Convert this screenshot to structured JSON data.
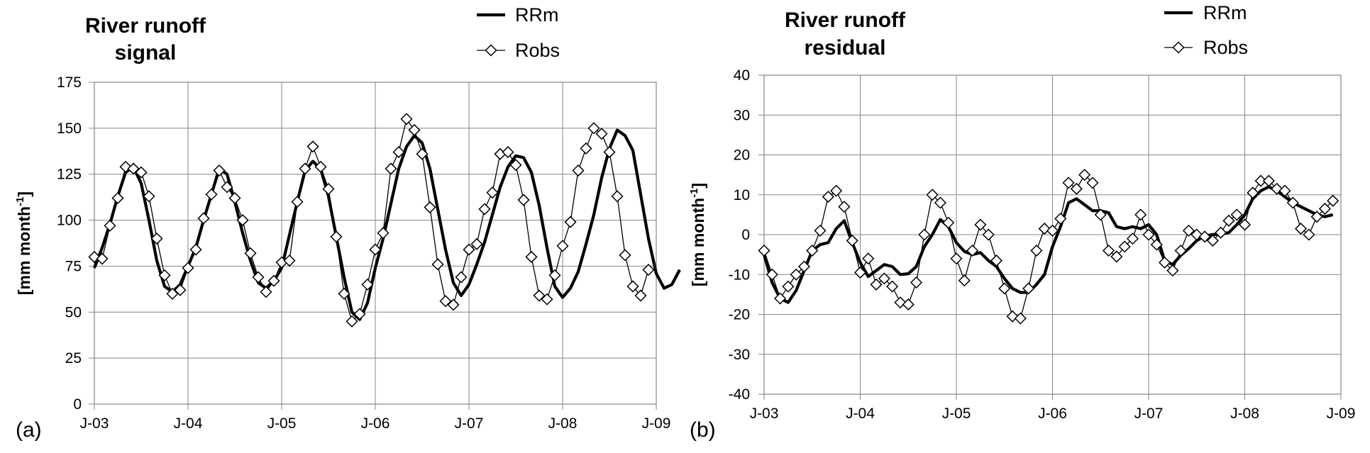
{
  "chart_data": [
    {
      "panel_label": "(a)",
      "type": "line",
      "title_lines": [
        "River runoff",
        "signal"
      ],
      "ylabel": "[mm month",
      "ylabel_sup": "-1",
      "ylabel_close": "]",
      "ylim": [
        0,
        175
      ],
      "yticks": [
        0,
        25,
        50,
        75,
        100,
        125,
        150,
        175
      ],
      "xlim": [
        0,
        72
      ],
      "xticks": [
        {
          "pos": 0,
          "label": "J-03"
        },
        {
          "pos": 12,
          "label": "J-04"
        },
        {
          "pos": 24,
          "label": "J-05"
        },
        {
          "pos": 36,
          "label": "J-06"
        },
        {
          "pos": 48,
          "label": "J-07"
        },
        {
          "pos": 60,
          "label": "J-08"
        },
        {
          "pos": 72,
          "label": "J-09"
        }
      ],
      "grid": true,
      "legend": "top-right",
      "series": [
        {
          "name": "RRm",
          "style": "thick",
          "values": [
            74,
            85,
            98,
            113,
            126,
            129,
            120,
            100,
            78,
            64,
            61,
            65,
            75,
            85,
            100,
            114,
            128,
            125,
            110,
            93,
            78,
            66,
            63,
            67,
            74,
            92,
            110,
            127,
            132,
            128,
            113,
            91,
            69,
            50,
            46,
            55,
            74,
            90,
            109,
            128,
            140,
            146,
            142,
            128,
            106,
            84,
            66,
            59,
            65,
            76,
            88,
            103,
            118,
            129,
            135,
            134,
            126,
            108,
            85,
            64,
            58,
            63,
            72,
            87,
            103,
            123,
            139,
            149,
            146,
            138,
            114,
            90,
            71,
            63,
            65,
            73
          ]
        },
        {
          "name": "Robs",
          "style": "thin-diamond",
          "values": [
            80,
            79,
            97,
            112,
            129,
            128,
            126,
            113,
            90,
            70,
            60,
            62,
            74,
            84,
            101,
            114,
            127,
            118,
            112,
            100,
            82,
            69,
            61,
            67,
            77,
            78,
            110,
            128,
            140,
            129,
            117,
            91,
            60,
            45,
            49,
            65,
            84,
            93,
            128,
            137,
            155,
            149,
            136,
            107,
            76,
            56,
            54,
            69,
            84,
            87,
            106,
            115,
            136,
            137,
            130,
            111,
            80,
            59,
            57,
            70,
            86,
            99,
            127,
            139,
            150,
            147,
            137,
            113,
            81,
            64,
            59,
            73
          ]
        }
      ]
    },
    {
      "panel_label": "(b)",
      "type": "line",
      "title_lines": [
        "River runoff",
        "residual"
      ],
      "ylabel": "[mm month",
      "ylabel_sup": "-1",
      "ylabel_close": "]",
      "ylim": [
        -40,
        40
      ],
      "yticks": [
        -40,
        -30,
        -20,
        -10,
        0,
        10,
        20,
        30,
        40
      ],
      "xlim": [
        0,
        72
      ],
      "xticks": [
        {
          "pos": 0,
          "label": "J-03"
        },
        {
          "pos": 12,
          "label": "J-04"
        },
        {
          "pos": 24,
          "label": "J-05"
        },
        {
          "pos": 36,
          "label": "J-06"
        },
        {
          "pos": 48,
          "label": "J-07"
        },
        {
          "pos": 60,
          "label": "J-08"
        },
        {
          "pos": 72,
          "label": "J-09"
        }
      ],
      "grid": true,
      "legend": "top-right",
      "series": [
        {
          "name": "RRm",
          "style": "thick",
          "values": [
            -5,
            -12,
            -16,
            -17,
            -14,
            -9,
            -4,
            -2.5,
            -2,
            1.5,
            3.5,
            -2,
            -7,
            -10.5,
            -9,
            -7.5,
            -8,
            -10,
            -9.8,
            -8,
            -3,
            0,
            3.8,
            2,
            -2,
            -4.2,
            -5,
            -4.5,
            -6.5,
            -8,
            -11,
            -13.5,
            -14.5,
            -14.5,
            -12.5,
            -10,
            -3,
            2,
            8,
            9,
            7.5,
            6,
            6,
            5.5,
            2,
            1.5,
            2,
            1.5,
            2.5,
            0,
            -6.5,
            -7.5,
            -5.2,
            -3.5,
            -1.5,
            -0.3,
            0,
            0.2,
            0.5,
            2.5,
            5,
            9,
            11,
            12,
            11,
            9.5,
            8,
            7,
            6,
            5,
            4.5,
            5
          ]
        },
        {
          "name": "Robs",
          "style": "thin-diamond",
          "values": [
            -4,
            -10,
            -16,
            -13,
            -10,
            -8,
            -4,
            1,
            9.5,
            11,
            7,
            -1.5,
            -9.5,
            -6,
            -12.5,
            -11,
            -13,
            -17,
            -17.5,
            -12,
            0,
            10,
            8,
            3,
            -6,
            -11.5,
            -4,
            2.5,
            0,
            -6.5,
            -13.5,
            -20.5,
            -21,
            -13.5,
            -4,
            1.5,
            1,
            4,
            13,
            11.5,
            15,
            13,
            5,
            -4,
            -5.5,
            -3,
            -1,
            5,
            0,
            -2.5,
            -7,
            -9,
            -4,
            1,
            0,
            -0.5,
            -1.5,
            0.5,
            3.5,
            5,
            2.5,
            10.5,
            13.5,
            13.5,
            11.5,
            11,
            8,
            1.5,
            0,
            4.5,
            6.5,
            8.5
          ]
        }
      ]
    }
  ]
}
